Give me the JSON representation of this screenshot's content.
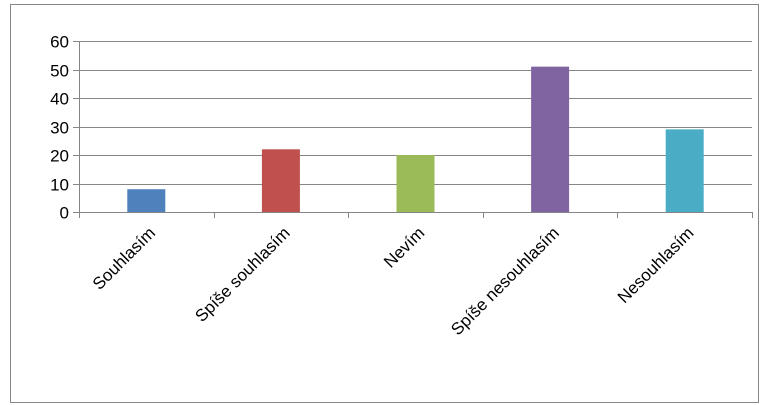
{
  "chart_data": {
    "type": "bar",
    "categories": [
      "Souhlasím",
      "Spíše souhlasím",
      "Nevím",
      "Spíše nesouhlasím",
      "Nesouhlasím"
    ],
    "values": [
      8,
      22,
      20,
      51,
      29
    ],
    "colors": [
      "#4f81bd",
      "#c0504d",
      "#9bbb59",
      "#8064a2",
      "#4bacc6"
    ],
    "title": "",
    "xlabel": "",
    "ylabel": "",
    "ylim": [
      0,
      60
    ],
    "yticks": [
      "0",
      "10",
      "20",
      "30",
      "40",
      "50",
      "60"
    ],
    "grid": true,
    "legend": "none"
  }
}
